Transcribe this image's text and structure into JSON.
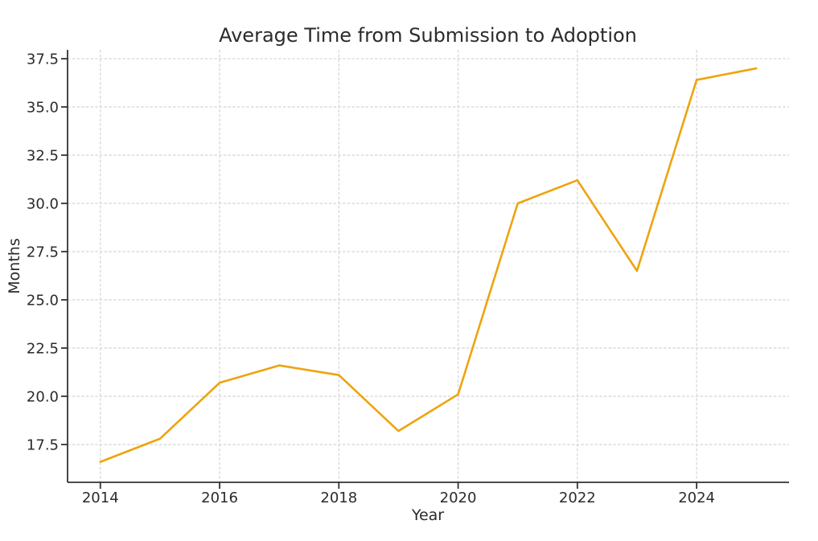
{
  "chart_data": {
    "type": "line",
    "title": "Average Time from Submission to Adoption",
    "xlabel": "Year",
    "ylabel": "Months",
    "x": [
      2014,
      2015,
      2016,
      2017,
      2018,
      2019,
      2020,
      2021,
      2022,
      2023,
      2024,
      2025
    ],
    "series": [
      {
        "name": "average-months",
        "values": [
          16.6,
          17.8,
          20.7,
          21.6,
          21.1,
          18.2,
          20.1,
          30.0,
          31.2,
          26.5,
          36.4,
          37.0
        ]
      }
    ],
    "xticks": [
      2014,
      2016,
      2018,
      2020,
      2022,
      2024
    ],
    "yticks": [
      17.5,
      20.0,
      22.5,
      25.0,
      27.5,
      30.0,
      32.5,
      35.0,
      37.5
    ],
    "xlim": [
      2013.45,
      2025.55
    ],
    "ylim": [
      15.54,
      37.96
    ],
    "grid": true,
    "legend": false,
    "line_color": "#eda40e",
    "grid_color": "#d4d4d4",
    "text_color": "#2b2b2b",
    "background": "#ffffff"
  }
}
